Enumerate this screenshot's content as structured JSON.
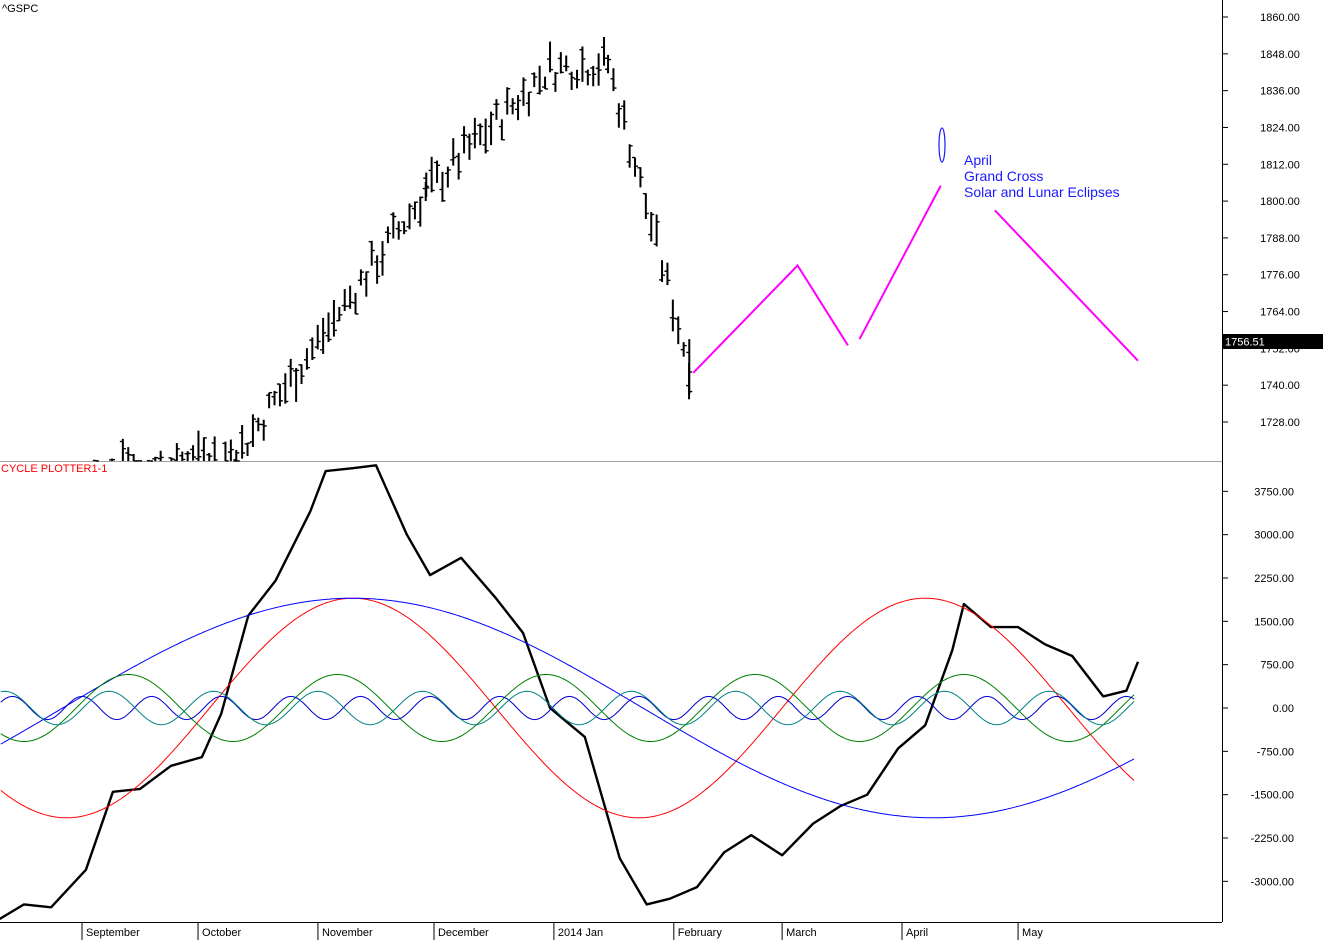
{
  "chart_data": [
    {
      "type": "ohlc",
      "title": "^GSPC",
      "last_price_label": "1756.51",
      "ylim": [
        1722,
        1868
      ],
      "y_ticks": [
        "1860.00",
        "1848.00",
        "1836.00",
        "1824.00",
        "1812.00",
        "1800.00",
        "1788.00",
        "1776.00",
        "1764.00",
        "1752.00",
        "1740.00",
        "1728.00"
      ],
      "colors": {
        "bars": "#000000",
        "projection": "#ff00ff",
        "annotation": "#1a1aff",
        "price_tag": "#000000"
      },
      "bars_ref": [
        {
          "date": "2013-08-30",
          "high": 1730,
          "low": 1690
        },
        {
          "date": "2013-10-11",
          "high": 1735,
          "low": 1700
        },
        {
          "date": "2013-11-29",
          "high": 1813,
          "low": 1793
        },
        {
          "date": "2013-12-31",
          "high": 1849,
          "low": 1838
        },
        {
          "date": "2014-01-15",
          "high": 1850,
          "low": 1840
        },
        {
          "date": "2014-02-05",
          "high": 1755,
          "low": 1737
        }
      ],
      "projection": [
        [
          {
            "date": "2014-02-06",
            "value": 1744
          },
          {
            "date": "2014-03-05",
            "value": 1779
          },
          {
            "date": "2014-03-18",
            "value": 1753
          }
        ],
        [
          {
            "date": "2014-03-21",
            "value": 1755
          },
          {
            "date": "2014-04-11",
            "value": 1805
          }
        ],
        [
          {
            "date": "2014-04-25",
            "value": 1797
          },
          {
            "date": "2014-06-01",
            "value": 1748
          }
        ]
      ],
      "annotation_lines": [
        "April",
        "Grand Cross",
        "Solar and Lunar Eclipses"
      ],
      "annotation_marker": "ellipse"
    },
    {
      "type": "line",
      "title": "CYCLE PLOTTER1-1",
      "ylim": [
        -3700,
        4250
      ],
      "y_ticks": [
        "3750.00",
        "3000.00",
        "2250.00",
        "1500.00",
        "750.00",
        "0.00",
        "-750.00",
        "-1500.00",
        "-2250.00",
        "-3000.00"
      ],
      "x_labels": [
        "September",
        "October",
        "November",
        "December",
        "2014 Jan",
        "February",
        "March",
        "April",
        "May"
      ],
      "series": [
        {
          "color": "#000000",
          "points": [
            [
              "2013-08-06",
              -3450
            ],
            [
              "2013-08-10",
              -3680
            ],
            [
              "2013-08-17",
              -3400
            ],
            [
              "2013-08-24",
              -3450
            ],
            [
              "2013-09-02",
              -2800
            ],
            [
              "2013-09-09",
              -1450
            ],
            [
              "2013-09-16",
              -1400
            ],
            [
              "2013-09-24",
              -1000
            ],
            [
              "2013-10-02",
              -850
            ],
            [
              "2013-10-07",
              -100
            ],
            [
              "2013-10-14",
              1600
            ],
            [
              "2013-10-21",
              2200
            ],
            [
              "2013-10-30",
              3400
            ],
            [
              "2013-11-03",
              4100
            ],
            [
              "2013-11-10",
              4150
            ],
            [
              "2013-11-16",
              4200
            ],
            [
              "2013-11-24",
              3000
            ],
            [
              "2013-11-30",
              2300
            ],
            [
              "2013-12-08",
              2600
            ],
            [
              "2013-12-17",
              1900
            ],
            [
              "2013-12-24",
              1300
            ],
            [
              "2013-12-31",
              0
            ],
            [
              "2014-01-09",
              -500
            ],
            [
              "2014-01-18",
              -2600
            ],
            [
              "2014-01-25",
              -3400
            ],
            [
              "2014-01-31",
              -3300
            ],
            [
              "2014-02-07",
              -3100
            ],
            [
              "2014-02-14",
              -2500
            ],
            [
              "2014-02-21",
              -2200
            ],
            [
              "2014-03-01",
              -2550
            ],
            [
              "2014-03-09",
              -2000
            ],
            [
              "2014-03-16",
              -1700
            ],
            [
              "2014-03-23",
              -1500
            ],
            [
              "2014-03-31",
              -700
            ],
            [
              "2014-04-07",
              -300
            ],
            [
              "2014-04-14",
              1000
            ],
            [
              "2014-04-17",
              1800
            ],
            [
              "2014-04-24",
              1400
            ],
            [
              "2014-05-01",
              1400
            ],
            [
              "2014-05-08",
              1100
            ],
            [
              "2014-05-15",
              900
            ],
            [
              "2014-05-23",
              200
            ],
            [
              "2014-05-29",
              300
            ],
            [
              "2014-06-01",
              800
            ]
          ]
        },
        {
          "color": "#ff0000",
          "sine": {
            "center": 0,
            "amplitude": 1900,
            "period_days": 148,
            "peak_date": "2013-11-10"
          }
        },
        {
          "color": "#0000ff",
          "sine": {
            "center": 0,
            "amplitude": 1900,
            "period_days": 300,
            "peak_date": "2013-11-10"
          }
        },
        {
          "color": "#008000",
          "sine": {
            "center": 0,
            "amplitude": 580,
            "period_days": 54,
            "peak_date": "2013-09-13"
          }
        },
        {
          "color": "#0000cc",
          "sine": {
            "center": 0,
            "amplitude": 200,
            "period_days": 18,
            "peak_date": "2013-08-14"
          }
        },
        {
          "color": "#008080",
          "sine": {
            "center": 0,
            "amplitude": 290,
            "period_days": 27,
            "peak_date": "2013-08-12"
          }
        }
      ]
    }
  ]
}
